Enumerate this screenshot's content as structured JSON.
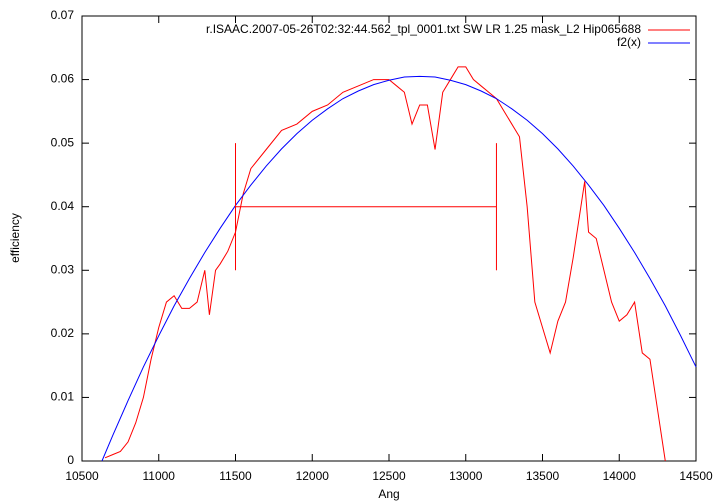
{
  "chart_data": {
    "type": "line",
    "xlabel": "Ang",
    "ylabel": "efficiency",
    "xlim": [
      10500,
      14500
    ],
    "xticks": [
      10500,
      11000,
      11500,
      12000,
      12500,
      13000,
      13500,
      14000,
      14500
    ],
    "ylim": [
      0,
      0.07
    ],
    "yticks": [
      0,
      0.01,
      0.02,
      0.03,
      0.04,
      0.05,
      0.06,
      0.07
    ],
    "legend": "top-right",
    "series": [
      {
        "name": "r.ISAAC.2007-05-26T02:32:44.562_tpl_0001.txt  SW LR 1.25 mask_L2 Hip065688",
        "color": "#ff0000",
        "x": [
          10650,
          10700,
          10750,
          10800,
          10850,
          10900,
          10950,
          11000,
          11050,
          11100,
          11150,
          11200,
          11250,
          11300,
          11330,
          11370,
          11400,
          11450,
          11500,
          11550,
          11600,
          11700,
          11800,
          11900,
          12000,
          12100,
          12200,
          12300,
          12400,
          12500,
          12550,
          12600,
          12650,
          12700,
          12750,
          12800,
          12850,
          12900,
          12950,
          13000,
          13050,
          13100,
          13150,
          13200,
          13250,
          13300,
          13350,
          13400,
          13450,
          13500,
          13550,
          13600,
          13650,
          13700,
          13750,
          13775,
          13800,
          13850,
          13900,
          13950,
          14000,
          14050,
          14100,
          14150,
          14200,
          14250,
          14300
        ],
        "values": [
          0.0005,
          0.001,
          0.0015,
          0.003,
          0.006,
          0.01,
          0.016,
          0.021,
          0.025,
          0.026,
          0.024,
          0.024,
          0.025,
          0.03,
          0.023,
          0.03,
          0.031,
          0.033,
          0.036,
          0.042,
          0.046,
          0.049,
          0.052,
          0.053,
          0.055,
          0.056,
          0.058,
          0.059,
          0.06,
          0.06,
          0.059,
          0.058,
          0.053,
          0.056,
          0.056,
          0.049,
          0.058,
          0.06,
          0.062,
          0.062,
          0.06,
          0.059,
          0.058,
          0.057,
          0.055,
          0.053,
          0.051,
          0.04,
          0.025,
          0.021,
          0.017,
          0.022,
          0.025,
          0.032,
          0.04,
          0.044,
          0.036,
          0.035,
          0.03,
          0.025,
          0.022,
          0.023,
          0.025,
          0.017,
          0.016,
          0.008,
          0
        ]
      },
      {
        "name": "f2(x)",
        "color": "#0000ff",
        "x": [
          10630,
          10700,
          10800,
          10900,
          11000,
          11100,
          11200,
          11300,
          11400,
          11500,
          11600,
          11700,
          11800,
          11900,
          12000,
          12100,
          12200,
          12300,
          12400,
          12500,
          12600,
          12700,
          12800,
          12900,
          13000,
          13100,
          13200,
          13300,
          13400,
          13500,
          13600,
          13700,
          13800,
          13900,
          14000,
          14100,
          14200,
          14300,
          14400,
          14500
        ],
        "values": [
          0,
          0.004,
          0.0095,
          0.0148,
          0.0197,
          0.0244,
          0.0287,
          0.0328,
          0.0366,
          0.0402,
          0.0434,
          0.0464,
          0.0491,
          0.0515,
          0.0536,
          0.0554,
          0.057,
          0.0582,
          0.0592,
          0.0599,
          0.0604,
          0.0605,
          0.0604,
          0.0599,
          0.0592,
          0.0582,
          0.057,
          0.0554,
          0.0536,
          0.0515,
          0.0491,
          0.0464,
          0.0434,
          0.0402,
          0.0366,
          0.0328,
          0.0287,
          0.0244,
          0.0197,
          0.0148
        ]
      }
    ],
    "range_marker": {
      "color": "#ff0000",
      "x1": 11500,
      "x2": 13200,
      "y": 0.04,
      "ymin": 0.03,
      "ymax": 0.05
    }
  }
}
